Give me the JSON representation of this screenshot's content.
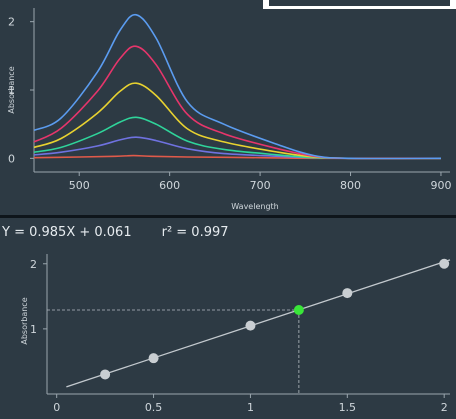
{
  "regression": {
    "equation": "Y = 0.985X + 0.061",
    "r2_label": "r² = 0.997"
  },
  "colors": {
    "background": "#2d3a44",
    "axis": "#9aa6ae",
    "text": "#cfd6db",
    "point": "#c9ced2",
    "highlight": "#39e639"
  },
  "chart_data": [
    {
      "type": "line",
      "title": "",
      "xlabel": "Wavelength",
      "ylabel": "Absorbance",
      "xlim": [
        450,
        910
      ],
      "ylim": [
        -0.2,
        2.2
      ],
      "x_ticks": [
        500,
        600,
        700,
        800,
        900
      ],
      "y_ticks": [
        0,
        1,
        2
      ],
      "grid": false,
      "series": [
        {
          "color": "#e05a4a",
          "x": [
            450,
            500,
            540,
            560,
            580,
            620,
            700,
            760,
            900
          ],
          "y": [
            0.01,
            0.02,
            0.03,
            0.04,
            0.03,
            0.02,
            0.01,
            0.0,
            0.0
          ]
        },
        {
          "color": "#6f72e0",
          "x": [
            450,
            480,
            520,
            545,
            563,
            585,
            620,
            660,
            720,
            760,
            800,
            900
          ],
          "y": [
            0.05,
            0.09,
            0.18,
            0.27,
            0.31,
            0.26,
            0.14,
            0.07,
            0.03,
            0.01,
            0.0,
            0.0
          ]
        },
        {
          "color": "#2fd49a",
          "x": [
            450,
            480,
            520,
            545,
            563,
            585,
            620,
            660,
            720,
            760,
            800,
            900
          ],
          "y": [
            0.09,
            0.16,
            0.36,
            0.53,
            0.6,
            0.5,
            0.25,
            0.13,
            0.05,
            0.01,
            0.0,
            0.0
          ]
        },
        {
          "color": "#e8d230",
          "x": [
            450,
            480,
            520,
            545,
            563,
            585,
            620,
            660,
            720,
            760,
            800,
            900
          ],
          "y": [
            0.16,
            0.29,
            0.66,
            0.98,
            1.1,
            0.92,
            0.43,
            0.24,
            0.09,
            0.02,
            0.0,
            0.0
          ]
        },
        {
          "color": "#e6356b",
          "x": [
            450,
            480,
            520,
            545,
            563,
            585,
            620,
            660,
            720,
            760,
            800,
            900
          ],
          "y": [
            0.24,
            0.44,
            0.98,
            1.46,
            1.64,
            1.37,
            0.64,
            0.36,
            0.14,
            0.03,
            0.0,
            0.0
          ]
        },
        {
          "color": "#5b9cf0",
          "x": [
            450,
            480,
            520,
            545,
            563,
            585,
            620,
            660,
            720,
            760,
            800,
            900
          ],
          "y": [
            0.41,
            0.59,
            1.26,
            1.87,
            2.1,
            1.76,
            0.82,
            0.5,
            0.2,
            0.04,
            0.0,
            0.0
          ]
        }
      ]
    },
    {
      "type": "scatter",
      "title": "",
      "xlabel": "",
      "ylabel": "Absorbance",
      "xlim": [
        -0.05,
        2.03
      ],
      "ylim": [
        0.0,
        2.15
      ],
      "x_ticks": [
        0,
        0.5,
        1,
        1.5,
        2
      ],
      "x_tick_labels": [
        "0",
        "0.5",
        "1",
        "1.5",
        "2"
      ],
      "y_ticks": [
        1,
        2
      ],
      "grid": false,
      "fit": {
        "slope": 0.985,
        "intercept": 0.061
      },
      "points": [
        {
          "x": 0.25,
          "y": 0.3
        },
        {
          "x": 0.5,
          "y": 0.55
        },
        {
          "x": 1.0,
          "y": 1.05
        },
        {
          "x": 1.5,
          "y": 1.55
        },
        {
          "x": 2.0,
          "y": 2.0
        }
      ],
      "highlight": {
        "x": 1.25,
        "y": 1.29
      }
    }
  ]
}
